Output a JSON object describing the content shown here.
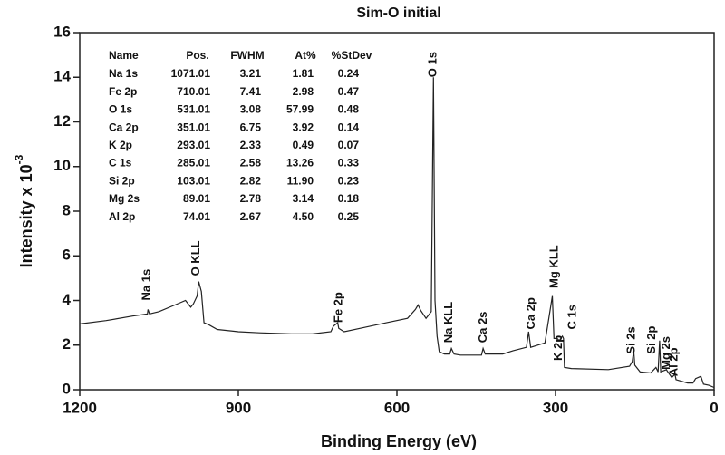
{
  "chart_data": {
    "type": "line",
    "title": "Sim-O initial",
    "xlabel": "Binding Energy (eV)",
    "ylabel": {
      "text": "Intensity x 10",
      "superscript": "-3"
    },
    "color": "#222222",
    "xlim": [
      1200,
      0
    ],
    "ylim": [
      0,
      16
    ],
    "xticks": [
      1200,
      900,
      600,
      300,
      0
    ],
    "yticks": [
      0,
      2,
      4,
      6,
      8,
      10,
      12,
      14,
      16
    ],
    "x": [
      1200,
      1150,
      1100,
      1072,
      1071,
      1068,
      1050,
      1010,
      1000,
      990,
      985,
      978,
      975,
      970,
      965,
      955,
      940,
      900,
      860,
      800,
      760,
      725,
      720,
      712,
      710,
      700,
      660,
      620,
      580,
      565,
      560,
      555,
      545,
      535,
      531,
      528,
      524,
      520,
      510,
      500,
      497,
      492,
      480,
      440,
      437,
      433,
      400,
      380,
      355,
      351,
      347,
      320,
      306,
      303,
      297,
      293,
      287,
      285,
      283,
      270,
      200,
      160,
      155,
      152,
      150,
      140,
      120,
      110,
      106,
      103,
      101,
      90,
      89,
      80,
      74,
      72,
      50,
      40,
      35,
      25,
      20,
      10,
      0
    ],
    "values": [
      2.95,
      3.1,
      3.3,
      3.4,
      3.6,
      3.4,
      3.5,
      3.9,
      4.0,
      3.7,
      3.85,
      4.2,
      4.85,
      4.4,
      3.0,
      2.9,
      2.7,
      2.6,
      2.55,
      2.5,
      2.5,
      2.6,
      2.85,
      3.0,
      2.75,
      2.6,
      2.8,
      3.0,
      3.2,
      3.6,
      3.8,
      3.55,
      3.2,
      3.5,
      14.0,
      4.0,
      2.4,
      1.7,
      1.6,
      1.6,
      1.85,
      1.6,
      1.55,
      1.55,
      1.85,
      1.6,
      1.6,
      1.75,
      1.9,
      2.6,
      1.9,
      2.1,
      4.2,
      2.3,
      2.3,
      2.2,
      2.4,
      2.3,
      1.0,
      0.95,
      0.9,
      1.05,
      1.25,
      1.75,
      1.1,
      0.8,
      0.75,
      1.0,
      0.8,
      2.2,
      0.8,
      0.9,
      0.85,
      0.55,
      0.7,
      0.45,
      0.3,
      0.3,
      0.5,
      0.6,
      0.25,
      0.2,
      0.1
    ],
    "annotations": [
      {
        "text": "Na 1s",
        "x": 1073,
        "y": 4.0
      },
      {
        "text": "O KLL",
        "x": 980,
        "y": 5.1
      },
      {
        "text": "Fe 2p",
        "x": 710,
        "y": 3.0
      },
      {
        "text": "O 1s",
        "x": 531,
        "y": 14.0
      },
      {
        "text": "Na KLL",
        "x": 501,
        "y": 2.1
      },
      {
        "text": "Ca 2s",
        "x": 436,
        "y": 2.1
      },
      {
        "text": "Ca 2p",
        "x": 345,
        "y": 2.7
      },
      {
        "text": "Mg KLL",
        "x": 302,
        "y": 4.55
      },
      {
        "text": "K 2p",
        "x": 294,
        "y": 1.3
      },
      {
        "text": "C 1s",
        "x": 267,
        "y": 2.7
      },
      {
        "text": "Si 2s",
        "x": 156,
        "y": 1.6
      },
      {
        "text": "Si 2p",
        "x": 117,
        "y": 1.6
      },
      {
        "text": "Mg 2s",
        "x": 90,
        "y": 0.9
      },
      {
        "text": "Al 2p",
        "x": 75,
        "y": 0.6
      }
    ],
    "table": {
      "columns": [
        "Name",
        "Pos.",
        "FWHM",
        "At%",
        "%StDev"
      ],
      "rows": [
        [
          "Na 1s",
          "1071.01",
          "3.21",
          "1.81",
          "0.24"
        ],
        [
          "Fe 2p",
          "710.01",
          "7.41",
          "2.98",
          "0.47"
        ],
        [
          "O 1s",
          "531.01",
          "3.08",
          "57.99",
          "0.48"
        ],
        [
          "Ca 2p",
          "351.01",
          "6.75",
          "3.92",
          "0.14"
        ],
        [
          "K 2p",
          "293.01",
          "2.33",
          "0.49",
          "0.07"
        ],
        [
          "C 1s",
          "285.01",
          "2.58",
          "13.26",
          "0.33"
        ],
        [
          "Si 2p",
          "103.01",
          "2.82",
          "11.90",
          "0.23"
        ],
        [
          "Mg 2s",
          "89.01",
          "2.78",
          "3.14",
          "0.18"
        ],
        [
          "Al 2p",
          "74.01",
          "2.67",
          "4.50",
          "0.25"
        ]
      ]
    }
  }
}
